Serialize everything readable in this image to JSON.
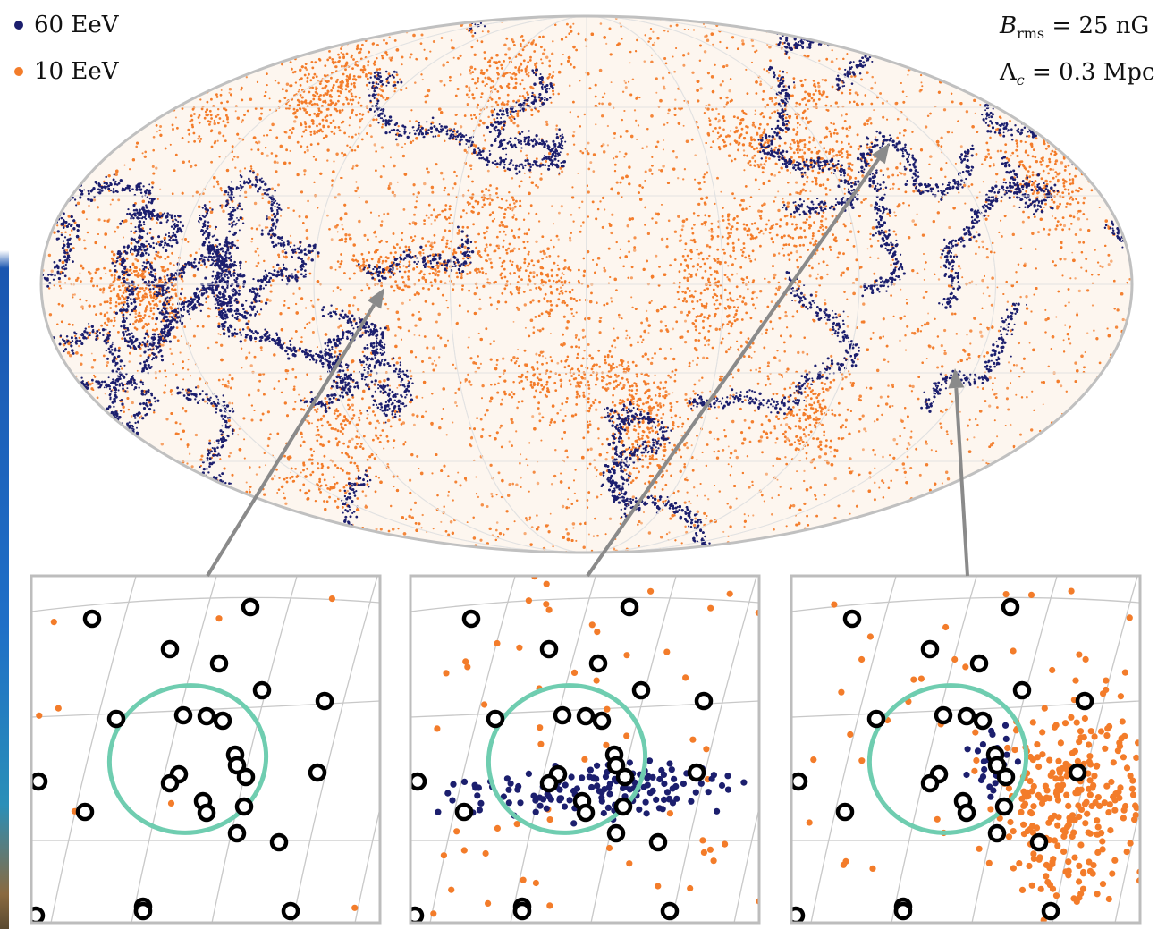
{
  "legend": {
    "items": [
      {
        "label": "60 EeV",
        "color": "#1c1f6e"
      },
      {
        "label": "10 EeV",
        "color": "#f37c2a"
      }
    ]
  },
  "params": {
    "brms_symbol": "B",
    "brms_sub": "rms",
    "brms_value": " = 25 nG",
    "lambda_symbol": "Λ",
    "lambda_sub": "c",
    "lambda_value": " = 0.3 Mpc"
  },
  "colors": {
    "high_energy": "#1c1f6e",
    "low_energy": "#f37c2a",
    "circle": "#6fcdb0",
    "grid": "#c8c8c8",
    "frame": "#bdbdbd",
    "arrow": "#8a8a8a",
    "source": "#000000"
  },
  "chart_data": [
    {
      "type": "scatter",
      "projection": "mollweide",
      "series": [
        {
          "name": "60 EeV",
          "color": "#1c1f6e"
        },
        {
          "name": "10 EeV",
          "color": "#f37c2a"
        }
      ],
      "grid": true
    },
    {
      "type": "scatter",
      "series": [
        {
          "name": "10 EeV",
          "color": "#f37c2a",
          "count": 8
        },
        {
          "name": "sources",
          "marker": "open-circle",
          "count": 28
        }
      ],
      "grid": true
    },
    {
      "type": "scatter",
      "series": [
        {
          "name": "60 EeV",
          "color": "#1c1f6e",
          "count": 150
        },
        {
          "name": "10 EeV",
          "color": "#f37c2a",
          "count": 60
        },
        {
          "name": "sources",
          "marker": "open-circle",
          "count": 28
        }
      ],
      "grid": true
    },
    {
      "type": "scatter",
      "series": [
        {
          "name": "60 EeV",
          "color": "#1c1f6e",
          "count": 30
        },
        {
          "name": "10 EeV",
          "color": "#f37c2a",
          "count": 320
        },
        {
          "name": "sources",
          "marker": "open-circle",
          "count": 28
        }
      ],
      "grid": true
    }
  ]
}
